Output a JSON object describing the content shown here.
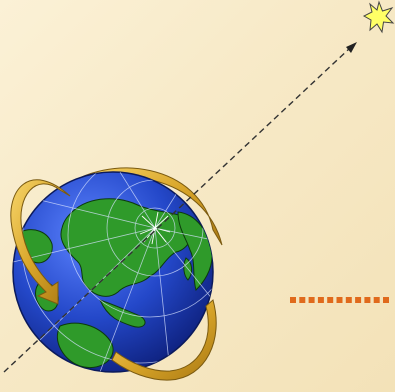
{
  "diagram": {
    "background_color": "#f7ebcb",
    "axis_color": "#333333",
    "orbit_ribbon_color": "#e0b535",
    "ocean_color": "#1e3fb8",
    "land_color": "#2f9a2a",
    "star_color": "#ffff66",
    "dotted_marker_color": "#e06a1c",
    "icons": [
      "star-icon",
      "earth-globe-icon",
      "rotation-arrow-icon",
      "axis-arrow-icon"
    ]
  }
}
